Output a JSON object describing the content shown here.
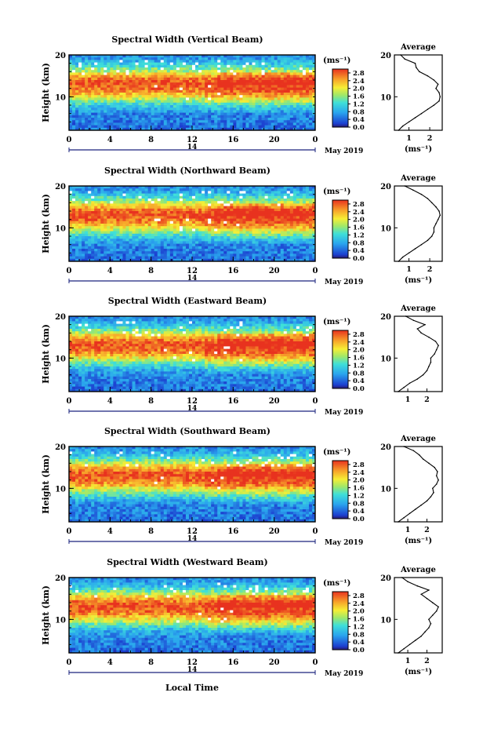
{
  "figure": {
    "x_axis_label": "Local Time",
    "date_label": "May 2019",
    "day_label": "14",
    "colorbar_unit": "(ms⁻¹)",
    "profile_title": "Average",
    "profile_unit": "(ms⁻¹)",
    "y_axis_label": "Height (km)"
  },
  "chart_data": [
    {
      "type": "heatmap",
      "title": "Spectral Width (Vertical Beam)",
      "xlabel": "",
      "ylabel": "Height (km)",
      "x_ticks": [
        "0",
        "4",
        "8",
        "12",
        "16",
        "20",
        "0"
      ],
      "xlim": [
        0,
        24
      ],
      "y_ticks": [
        "20",
        "10"
      ],
      "ylim": [
        2,
        20
      ],
      "colorbar": {
        "label": "(ms⁻¹)",
        "ticks": [
          "2.8",
          "2.4",
          "2.0",
          "1.6",
          "1.2",
          "0.8",
          "0.4",
          "0.0"
        ],
        "range": [
          0,
          3.0
        ]
      },
      "profile": {
        "title": "Average",
        "xlabel": "(ms⁻¹)",
        "x_ticks": [
          "1",
          "2"
        ],
        "xlim": [
          0.3,
          2.6
        ],
        "heights": [
          2,
          3,
          4,
          5,
          6,
          7,
          8,
          9,
          10,
          11,
          12,
          13,
          14,
          15,
          16,
          17,
          18,
          19,
          20
        ],
        "values": [
          0.5,
          0.7,
          1.0,
          1.3,
          1.6,
          1.9,
          2.2,
          2.45,
          2.5,
          2.45,
          2.3,
          2.4,
          2.2,
          1.9,
          1.5,
          1.35,
          1.3,
          0.8,
          0.6
        ]
      }
    },
    {
      "type": "heatmap",
      "title": "Spectral Width (Northward Beam)",
      "xlabel": "",
      "ylabel": "Height (km)",
      "x_ticks": [
        "0",
        "4",
        "8",
        "12",
        "16",
        "20",
        "0"
      ],
      "xlim": [
        0,
        24
      ],
      "y_ticks": [
        "20",
        "10"
      ],
      "ylim": [
        2,
        20
      ],
      "colorbar": {
        "label": "(ms⁻¹)",
        "ticks": [
          "2.8",
          "2.4",
          "2.0",
          "1.6",
          "1.2",
          "0.8",
          "0.4",
          "0.0"
        ],
        "range": [
          0,
          3.0
        ]
      },
      "profile": {
        "title": "Average",
        "xlabel": "(ms⁻¹)",
        "x_ticks": [
          "1",
          "2"
        ],
        "xlim": [
          0.3,
          2.6
        ],
        "heights": [
          2,
          3,
          4,
          5,
          6,
          7,
          8,
          9,
          10,
          11,
          12,
          13,
          14,
          15,
          16,
          17,
          18,
          19,
          20
        ],
        "values": [
          0.5,
          0.7,
          1.0,
          1.3,
          1.6,
          1.9,
          2.1,
          2.2,
          2.2,
          2.3,
          2.4,
          2.5,
          2.45,
          2.3,
          2.1,
          1.9,
          1.6,
          1.2,
          0.8
        ]
      }
    },
    {
      "type": "heatmap",
      "title": "Spectral Width (Eastward Beam)",
      "xlabel": "",
      "ylabel": "Height (km)",
      "x_ticks": [
        "0",
        "4",
        "8",
        "12",
        "16",
        "20",
        "0"
      ],
      "xlim": [
        0,
        24
      ],
      "y_ticks": [
        "20",
        "10"
      ],
      "ylim": [
        2,
        20
      ],
      "colorbar": {
        "label": "(ms⁻¹)",
        "ticks": [
          "2.8",
          "2.4",
          "2.0",
          "1.6",
          "1.2",
          "0.8",
          "0.4",
          "0.0"
        ],
        "range": [
          0,
          3.0
        ]
      },
      "profile": {
        "title": "Average",
        "xlabel": "",
        "x_ticks": [
          "1",
          "2"
        ],
        "xlim": [
          0.3,
          2.8
        ],
        "heights": [
          2,
          3,
          4,
          5,
          6,
          7,
          8,
          9,
          10,
          11,
          12,
          13,
          14,
          15,
          16,
          17,
          18,
          19,
          20
        ],
        "values": [
          0.5,
          0.8,
          1.1,
          1.5,
          1.8,
          2.0,
          2.1,
          2.2,
          2.2,
          2.4,
          2.5,
          2.6,
          2.45,
          2.1,
          1.7,
          1.5,
          1.9,
          1.3,
          0.9
        ]
      }
    },
    {
      "type": "heatmap",
      "title": "Spectral Width (Southward Beam)",
      "xlabel": "",
      "ylabel": "Height (km)",
      "x_ticks": [
        "0",
        "4",
        "8",
        "12",
        "16",
        "20",
        "0"
      ],
      "xlim": [
        0,
        24
      ],
      "y_ticks": [
        "20",
        "10"
      ],
      "ylim": [
        2,
        20
      ],
      "colorbar": {
        "label": "(ms⁻¹)",
        "ticks": [
          "2.8",
          "2.4",
          "2.0",
          "1.6",
          "1.2",
          "0.8",
          "0.4",
          "0.0"
        ],
        "range": [
          0,
          3.0
        ]
      },
      "profile": {
        "title": "Average",
        "xlabel": "(ms⁻¹)",
        "x_ticks": [
          "1",
          "2"
        ],
        "xlim": [
          0.3,
          2.8
        ],
        "heights": [
          2,
          3,
          4,
          5,
          6,
          7,
          8,
          9,
          10,
          11,
          12,
          13,
          14,
          15,
          16,
          17,
          18,
          19,
          20
        ],
        "values": [
          0.5,
          0.8,
          1.1,
          1.4,
          1.7,
          2.0,
          2.2,
          2.35,
          2.3,
          2.5,
          2.6,
          2.5,
          2.55,
          2.4,
          2.1,
          1.8,
          1.6,
          1.3,
          0.8
        ]
      }
    },
    {
      "type": "heatmap",
      "title": "Spectral Width (Westward Beam)",
      "xlabel": "Local Time",
      "ylabel": "Height (km)",
      "x_ticks": [
        "0",
        "4",
        "8",
        "12",
        "16",
        "20",
        "0"
      ],
      "xlim": [
        0,
        24
      ],
      "y_ticks": [
        "20",
        "10"
      ],
      "ylim": [
        2,
        20
      ],
      "colorbar": {
        "label": "(ms⁻¹)",
        "ticks": [
          "2.8",
          "2.4",
          "2.0",
          "1.6",
          "1.2",
          "0.8",
          "0.4",
          "0.0"
        ],
        "range": [
          0,
          3.0
        ]
      },
      "profile": {
        "title": "Average",
        "xlabel": "(ms⁻¹)",
        "x_ticks": [
          "1",
          "2"
        ],
        "xlim": [
          0.3,
          2.8
        ],
        "heights": [
          2,
          3,
          4,
          5,
          6,
          7,
          8,
          9,
          10,
          11,
          12,
          13,
          14,
          15,
          16,
          17,
          18,
          19,
          20
        ],
        "values": [
          0.5,
          0.8,
          1.1,
          1.4,
          1.7,
          1.9,
          2.1,
          2.2,
          2.1,
          2.3,
          2.5,
          2.6,
          2.3,
          2.0,
          1.7,
          2.1,
          1.5,
          1.0,
          0.7
        ]
      }
    }
  ]
}
